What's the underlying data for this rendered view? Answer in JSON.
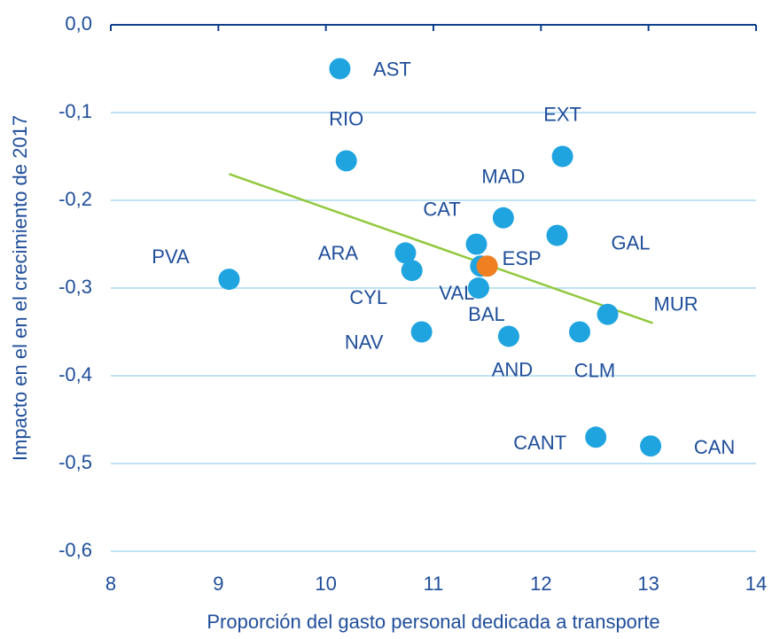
{
  "chart_data": {
    "type": "scatter",
    "x_label": "Proporción del gasto personal dedicada a transporte",
    "y_label": "Impacto en el en el crecimiento de 2017",
    "xlim": [
      8,
      14
    ],
    "xticks": [
      8,
      9,
      10,
      11,
      12,
      13,
      14
    ],
    "ylim": [
      -0.6,
      0
    ],
    "yticks": [
      {
        "value": 0,
        "label": "0,0"
      },
      {
        "value": -0.1,
        "label": "-0,1"
      },
      {
        "value": -0.2,
        "label": "-0,2"
      },
      {
        "value": -0.3,
        "label": "-0,3"
      },
      {
        "value": -0.4,
        "label": "-0,4"
      },
      {
        "value": -0.5,
        "label": "-0,5"
      },
      {
        "value": -0.6,
        "label": "-0,6"
      }
    ],
    "grid": true,
    "points": [
      {
        "label": "AST",
        "x": 10.13,
        "y": -0.05,
        "color": "#1fa4e0"
      },
      {
        "label": "RIO",
        "x": 10.19,
        "y": -0.155,
        "color": "#1fa4e0"
      },
      {
        "label": "EXT",
        "x": 12.2,
        "y": -0.15,
        "color": "#1fa4e0"
      },
      {
        "label": "MAD",
        "x": 11.65,
        "y": -0.22,
        "color": "#1fa4e0"
      },
      {
        "label": "CAT",
        "x": 11.4,
        "y": -0.25,
        "color": "#1fa4e0"
      },
      {
        "label": "ARA",
        "x": 10.74,
        "y": -0.26,
        "color": "#1fa4e0"
      },
      {
        "label": "PVA",
        "x": 9.1,
        "y": -0.29,
        "color": "#1fa4e0"
      },
      {
        "label": "CYL",
        "x": 10.8,
        "y": -0.28,
        "color": "#1fa4e0"
      },
      {
        "label": "VAL",
        "x": 11.44,
        "y": -0.275,
        "color": "#1fa4e0"
      },
      {
        "label": "BAL",
        "x": 11.42,
        "y": -0.3,
        "color": "#1fa4e0"
      },
      {
        "label": "GAL",
        "x": 12.15,
        "y": -0.24,
        "color": "#1fa4e0"
      },
      {
        "label": "MUR",
        "x": 12.62,
        "y": -0.33,
        "color": "#1fa4e0"
      },
      {
        "label": "NAV",
        "x": 10.89,
        "y": -0.35,
        "color": "#1fa4e0"
      },
      {
        "label": "AND",
        "x": 11.7,
        "y": -0.355,
        "color": "#1fa4e0"
      },
      {
        "label": "CLM",
        "x": 12.36,
        "y": -0.35,
        "color": "#1fa4e0"
      },
      {
        "label": "CANT",
        "x": 12.51,
        "y": -0.47,
        "color": "#1fa4e0"
      },
      {
        "label": "CAN",
        "x": 13.02,
        "y": -0.48,
        "color": "#1fa4e0"
      },
      {
        "label": "ESP",
        "x": 11.5,
        "y": -0.275,
        "color": "#f07f22"
      }
    ],
    "trendline": {
      "x": [
        9.1,
        13.04
      ],
      "y": [
        -0.17,
        -0.34
      ],
      "color": "#92c83e"
    }
  }
}
